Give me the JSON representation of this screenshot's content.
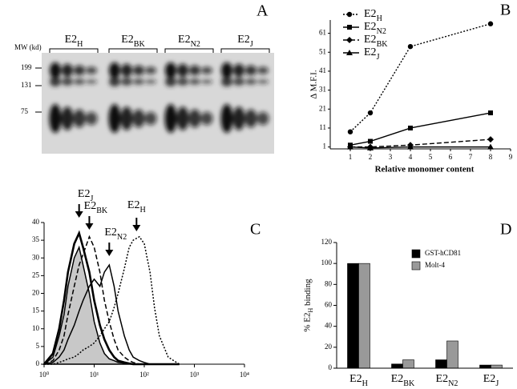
{
  "panels": [
    "A",
    "B",
    "C",
    "D"
  ],
  "gel": {
    "groups": [
      "E2H",
      "E2BK",
      "E2N2",
      "E2J"
    ],
    "mw_title": "MW (kd)",
    "mw_markers": [
      "199",
      "131",
      "75"
    ]
  },
  "chart_data": [
    {
      "type": "line",
      "xlabel": "Relative monomer content",
      "ylabel": "Δ M.F.I.",
      "x": [
        1,
        2,
        4,
        8
      ],
      "xlim": [
        0,
        9
      ],
      "xticks": [
        1,
        2,
        3,
        4,
        5,
        6,
        7,
        8,
        9
      ],
      "ylim": [
        0,
        68
      ],
      "yticks": [
        1,
        11,
        21,
        31,
        41,
        51,
        61
      ],
      "series": [
        {
          "name": "E2H",
          "color": "#000000",
          "marker": "circle",
          "linestyle": "dotted",
          "values": [
            9,
            19,
            54,
            66
          ]
        },
        {
          "name": "E2N2",
          "color": "#000000",
          "marker": "square",
          "linestyle": "solid",
          "values": [
            2,
            4,
            11,
            19
          ]
        },
        {
          "name": "E2BK",
          "color": "#000000",
          "marker": "diamond",
          "linestyle": "dashed",
          "values": [
            1,
            1,
            2,
            5
          ]
        },
        {
          "name": "E2J",
          "color": "#000000",
          "marker": "triangle",
          "linestyle": "solid",
          "values": [
            1,
            0.5,
            1,
            1
          ]
        }
      ]
    },
    {
      "type": "histogram-lines",
      "log_x": true,
      "x": [
        1,
        1.5,
        2,
        2.5,
        3,
        4,
        5,
        6,
        8,
        10,
        13,
        16,
        20,
        25,
        30,
        40,
        50,
        60,
        80,
        100,
        130,
        160,
        200,
        300,
        500
      ],
      "xlim": [
        1,
        10000
      ],
      "xticks": [
        {
          "value": 1,
          "label": "10⁰"
        },
        {
          "value": 10,
          "label": "10¹"
        },
        {
          "value": 100,
          "label": "10²"
        },
        {
          "value": 1000,
          "label": "10³"
        },
        {
          "value": 10000,
          "label": "10⁴"
        }
      ],
      "ylim": [
        0,
        40
      ],
      "yticks": [
        0,
        5,
        10,
        15,
        20,
        25,
        30,
        35,
        40
      ],
      "series": [
        {
          "color": "#000000",
          "fill": "#c8c8c8",
          "linestyle": "solid",
          "values": [
            0,
            2,
            8,
            14,
            22,
            30,
            33,
            28,
            20,
            12,
            6,
            3,
            1.5,
            1,
            0.5,
            0.3,
            0,
            0,
            0,
            0,
            0,
            0,
            0,
            0,
            0
          ]
        },
        {
          "color": "#000000",
          "linestyle": "thick",
          "values": [
            0,
            3,
            10,
            18,
            26,
            34,
            37,
            33,
            26,
            18,
            11,
            7,
            4,
            2,
            1,
            0.5,
            0.2,
            0,
            0,
            0,
            0,
            0,
            0,
            0,
            0
          ]
        },
        {
          "color": "#000000",
          "linestyle": "dashed",
          "values": [
            0,
            1,
            4,
            8,
            14,
            22,
            28,
            31,
            36,
            33,
            26,
            18,
            12,
            7,
            4,
            2,
            1,
            0.5,
            0,
            0,
            0,
            0,
            0,
            0,
            0
          ]
        },
        {
          "color": "#000000",
          "linestyle": "solid",
          "values": [
            0,
            0.5,
            2,
            4,
            7,
            11,
            15,
            18,
            22,
            24,
            22,
            26,
            28,
            22,
            15,
            8,
            4,
            2,
            1,
            0.5,
            0,
            0,
            0,
            0,
            0
          ]
        },
        {
          "color": "#000000",
          "linestyle": "dotted",
          "values": [
            0,
            0,
            0.5,
            1,
            1.5,
            2,
            3,
            4,
            5,
            6,
            8,
            10,
            12,
            16,
            20,
            27,
            33,
            35,
            36,
            34,
            26,
            16,
            8,
            2,
            0
          ]
        }
      ],
      "annotations": [
        {
          "text": "E2J",
          "x": 5
        },
        {
          "text": "E2BK",
          "x": 8
        },
        {
          "text": "E2N2",
          "x": 20
        },
        {
          "text": "E2H",
          "x": 70
        }
      ]
    },
    {
      "type": "bar",
      "ylabel": "% E2H binding",
      "categories": [
        "E2H",
        "E2BK",
        "E2N2",
        "E2J"
      ],
      "ylim": [
        0,
        120
      ],
      "yticks": [
        0,
        20,
        40,
        60,
        80,
        100,
        120
      ],
      "series": [
        {
          "name": "GST-hCD81",
          "color": "#000000",
          "values": [
            100,
            4,
            8,
            3
          ]
        },
        {
          "name": "Molt-4",
          "color": "#999999",
          "values": [
            100,
            8,
            26,
            3
          ]
        }
      ]
    }
  ]
}
